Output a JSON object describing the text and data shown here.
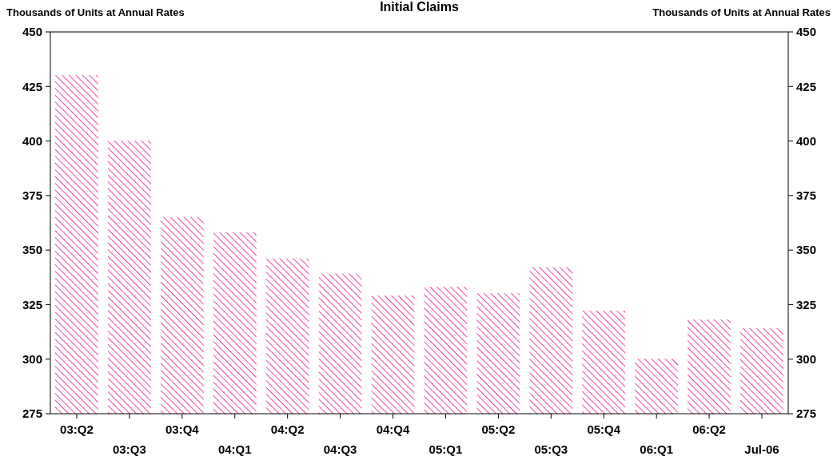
{
  "chart_data": {
    "type": "bar",
    "title": "Initial Claims",
    "ylabel": "Thousands of Units at Annual Rates",
    "y2label": "Thousands of Units at Annual Rates",
    "categories": [
      "03:Q2",
      "03:Q3",
      "03:Q4",
      "04:Q1",
      "04:Q2",
      "04:Q3",
      "04:Q4",
      "05:Q1",
      "05:Q2",
      "05:Q3",
      "05:Q4",
      "06:Q1",
      "06:Q2",
      "Jul-06"
    ],
    "values": [
      430,
      400,
      365,
      358,
      346,
      339,
      329,
      333,
      330,
      342,
      322,
      300,
      318,
      314
    ],
    "color": "#e8168f",
    "ylim": [
      275,
      450
    ],
    "yticks": [
      275,
      300,
      325,
      350,
      375,
      400,
      425,
      450
    ],
    "y2lim": [
      275,
      450
    ],
    "y2ticks": [
      275,
      300,
      325,
      350,
      375,
      400,
      425,
      450
    ],
    "grid": false
  }
}
